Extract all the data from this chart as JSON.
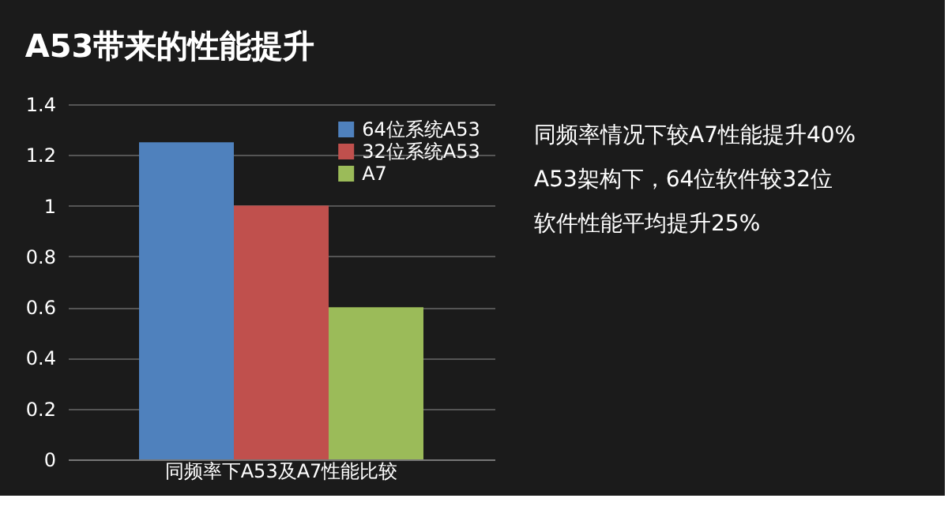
{
  "chart_data": {
    "type": "bar",
    "title": "A53带来的性能提升",
    "categories": [
      "同频率下A53及A7性能比较"
    ],
    "series": [
      {
        "name": "64位系统A53",
        "color": "#4f81bd",
        "values": [
          1.25
        ]
      },
      {
        "name": "32位系统A53",
        "color": "#c0504d",
        "values": [
          1.0
        ]
      },
      {
        "name": "A7",
        "color": "#9bbb59",
        "values": [
          0.6
        ]
      }
    ],
    "ylim": [
      0,
      1.4
    ],
    "yticks": [
      0,
      0.2,
      0.4,
      0.6,
      0.8,
      1,
      1.2,
      1.4
    ],
    "grid": "y",
    "legend": "top right",
    "annotations": [
      "同频率情况下较A7性能提升40%",
      "A53架构下，64位软件较32位软件性能平均提升25%"
    ]
  }
}
